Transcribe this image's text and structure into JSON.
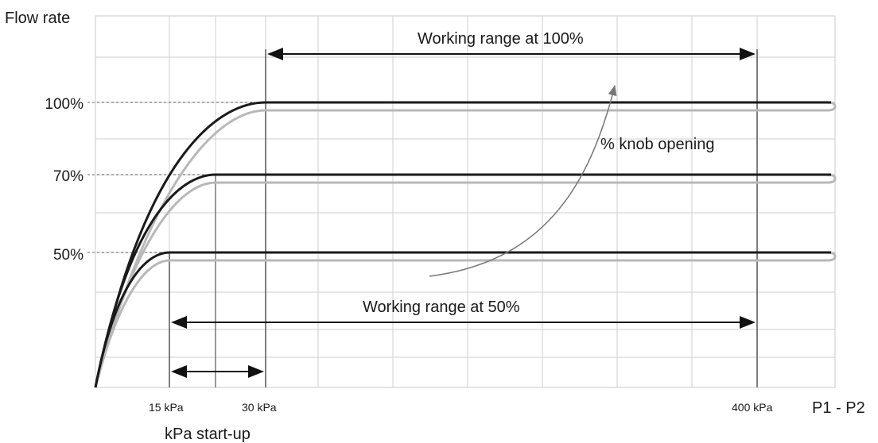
{
  "chart_data": {
    "type": "line",
    "title": "",
    "ylabel": "Flow rate",
    "xlabel": "P1 - P2",
    "x_tick_labels": [
      "15 kPa",
      "30 kPa",
      "400 kPa"
    ],
    "x_subtitle": "kPa start-up",
    "y_tick_labels": [
      "100%",
      "70%",
      "50%"
    ],
    "series": [
      {
        "level": 100,
        "plateau_from": "30 kPa",
        "color": "#1a1a1a"
      },
      {
        "level": 70,
        "plateau_from": "~20 kPa",
        "color": "#1a1a1a"
      },
      {
        "level": 50,
        "plateau_from": "15 kPa",
        "color": "#1a1a1a"
      }
    ],
    "shadow_color": "#b8b8b8",
    "grid": true,
    "annotations": {
      "range_100": "Working range at 100%",
      "range_50": "Working range at 50%",
      "knob": "% knob opening"
    }
  }
}
